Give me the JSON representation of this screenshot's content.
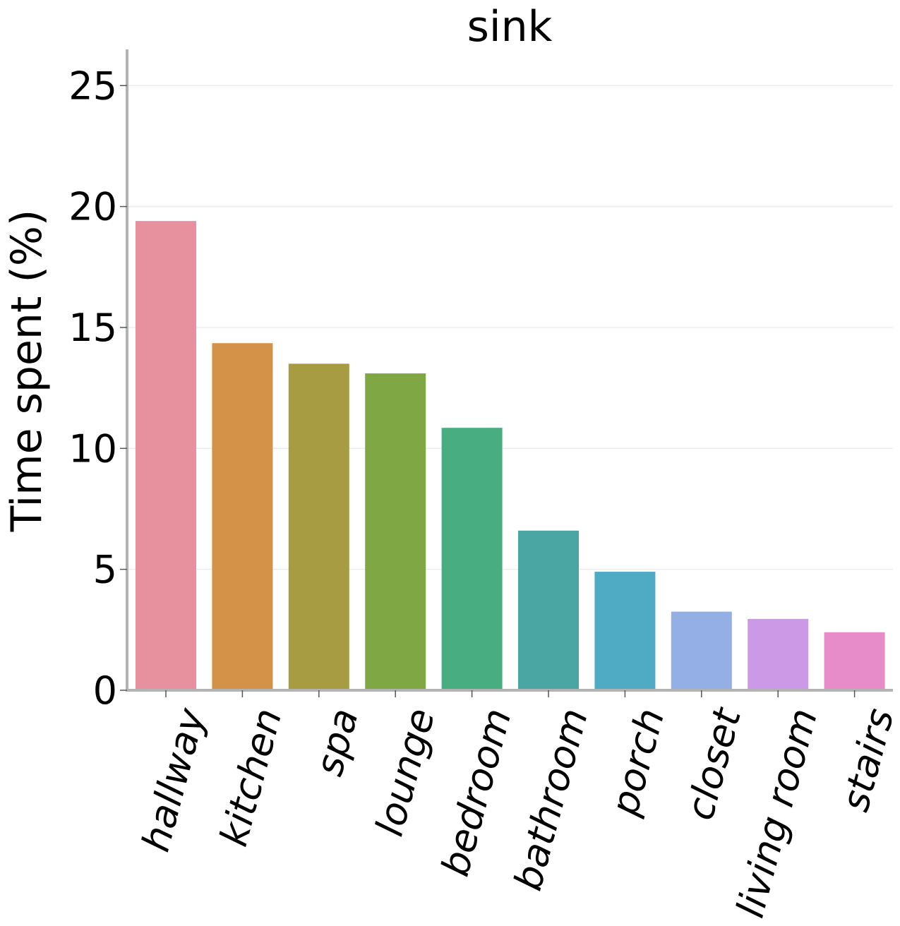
{
  "chart_data": {
    "type": "bar",
    "title": "sink",
    "xlabel": "",
    "ylabel": "Time spent (%)",
    "ylim": [
      0,
      26.5
    ],
    "yticks": [
      0,
      5,
      10,
      15,
      20,
      25
    ],
    "grid": "horizontal",
    "legend": "none",
    "categories": [
      "hallway",
      "kitchen",
      "spa",
      "lounge",
      "bedroom",
      "bathroom",
      "porch",
      "closet",
      "living room",
      "stairs"
    ],
    "values": [
      19.4,
      14.35,
      13.5,
      13.1,
      10.85,
      6.6,
      4.9,
      3.25,
      2.95,
      2.4
    ],
    "colors": [
      "#e8919e",
      "#d49148",
      "#a89c43",
      "#7fa845",
      "#48ad80",
      "#4aa6a3",
      "#4faac4",
      "#94aee6",
      "#cb99e5",
      "#e78bc9"
    ]
  }
}
